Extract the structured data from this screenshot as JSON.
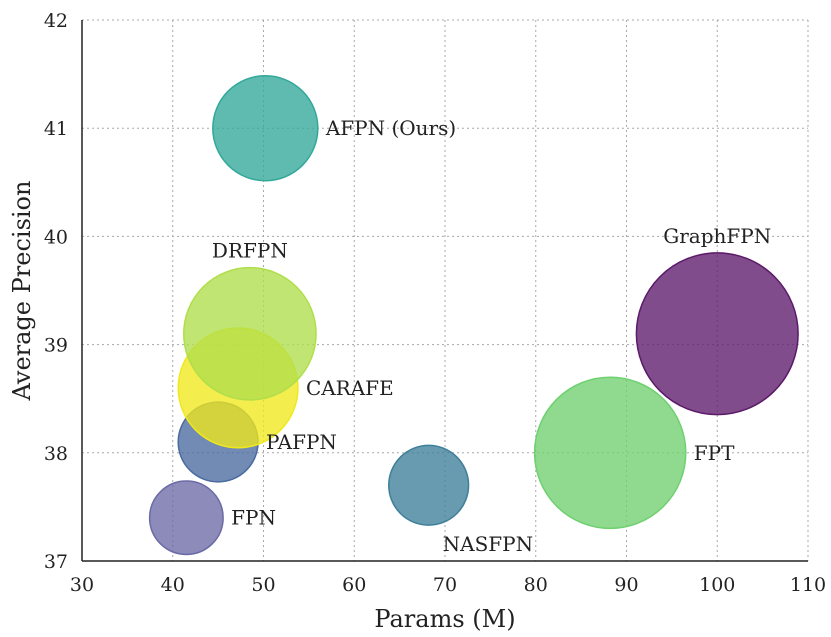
{
  "chart_data": {
    "type": "scatter",
    "variant": "bubble",
    "xlabel": "Params (M)",
    "ylabel": "Average Precision",
    "xlim": [
      30,
      110
    ],
    "ylim": [
      37,
      42
    ],
    "xticks": [
      30,
      40,
      50,
      60,
      70,
      80,
      90,
      100,
      110
    ],
    "yticks": [
      37,
      38,
      39,
      40,
      41,
      42
    ],
    "grid": true,
    "points": [
      {
        "name": "FPN",
        "x": 41.5,
        "y": 37.4,
        "size_rel": 0.35,
        "color": "#6b6aa6",
        "label_pos": "right"
      },
      {
        "name": "PAFPN",
        "x": 45.0,
        "y": 38.1,
        "size_rel": 0.38,
        "color": "#4a6aa0",
        "label_pos": "right"
      },
      {
        "name": "NASFPN",
        "x": 68.2,
        "y": 37.7,
        "size_rel": 0.38,
        "color": "#3e7f99",
        "label_pos": "below-right"
      },
      {
        "name": "CARAFE",
        "x": 47.2,
        "y": 38.6,
        "size_rel": 0.57,
        "color": "#f0e81c",
        "label_pos": "right"
      },
      {
        "name": "DRFPN",
        "x": 48.5,
        "y": 39.1,
        "size_rel": 0.63,
        "color": "#b0de4a",
        "label_pos": "above"
      },
      {
        "name": "AFPN (Ours)",
        "x": 50.2,
        "y": 41.0,
        "size_rel": 0.5,
        "color": "#32a89a",
        "label_pos": "right"
      },
      {
        "name": "FPT",
        "x": 88.2,
        "y": 38.0,
        "size_rel": 0.72,
        "color": "#6fd070",
        "label_pos": "right"
      },
      {
        "name": "GraphFPN",
        "x": 100.0,
        "y": 39.1,
        "size_rel": 0.77,
        "color": "#5c1a6a",
        "label_pos": "above"
      }
    ]
  }
}
